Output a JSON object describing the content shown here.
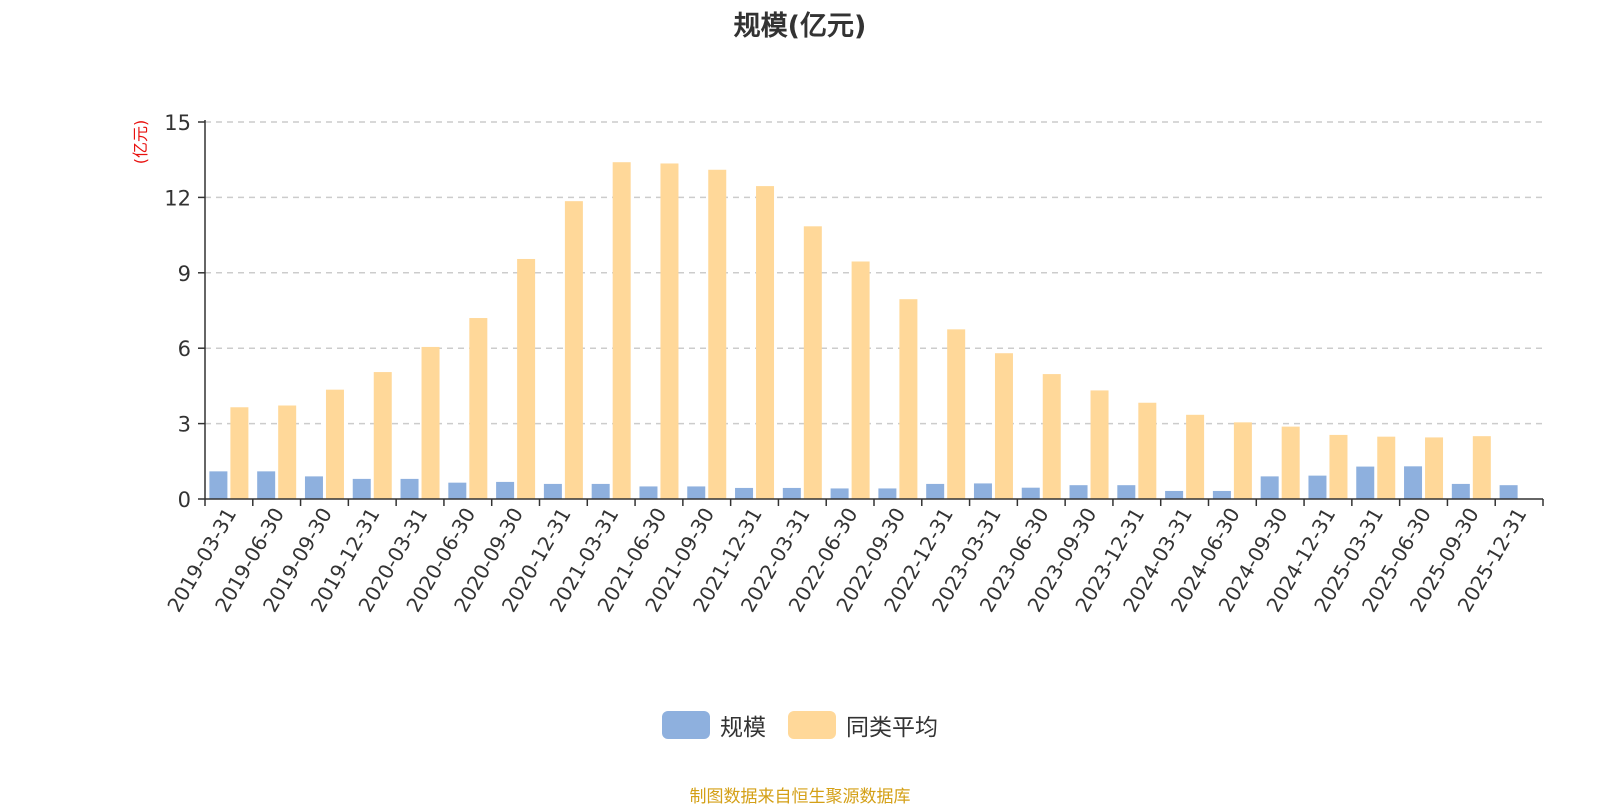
{
  "chart_data": {
    "type": "bar",
    "title": "规模(亿元)",
    "ylabel": "(亿元)",
    "xlabel": "",
    "ylim": [
      0,
      15
    ],
    "yticks": [
      0,
      3,
      6,
      9,
      12,
      15
    ],
    "grid": "horizontal-dashed",
    "legend_position": "bottom",
    "categories": [
      "2019-03-31",
      "2019-06-30",
      "2019-09-30",
      "2019-12-31",
      "2020-03-31",
      "2020-06-30",
      "2020-09-30",
      "2020-12-31",
      "2021-03-31",
      "2021-06-30",
      "2021-09-30",
      "2021-12-31",
      "2022-03-31",
      "2022-06-30",
      "2022-09-30",
      "2022-12-31",
      "2023-03-31",
      "2023-06-30",
      "2023-09-30",
      "2023-12-31",
      "2024-03-31",
      "2024-06-30",
      "2024-09-30",
      "2024-12-31",
      "2025-03-31",
      "2025-06-30",
      "2025-09-30",
      "2025-12-31"
    ],
    "series": [
      {
        "name": "规模",
        "color": "#8eb0de",
        "values": [
          1.1,
          1.1,
          0.9,
          0.8,
          0.8,
          0.65,
          0.68,
          0.6,
          0.6,
          0.5,
          0.5,
          0.44,
          0.44,
          0.42,
          0.42,
          0.6,
          0.62,
          0.45,
          0.55,
          0.55,
          0.32,
          0.32,
          0.9,
          0.93,
          1.29,
          1.3,
          0.6,
          0.55
        ]
      },
      {
        "name": "同类平均",
        "color": "#ffd899",
        "values": [
          3.65,
          3.72,
          4.35,
          5.05,
          6.05,
          7.2,
          9.55,
          11.85,
          13.4,
          13.35,
          13.1,
          12.45,
          10.85,
          9.45,
          7.95,
          6.75,
          5.8,
          4.97,
          4.32,
          3.83,
          3.35,
          3.05,
          2.88,
          2.55,
          2.48,
          2.45,
          2.5,
          null
        ]
      }
    ]
  },
  "source_note": "制图数据来自恒生聚源数据库"
}
